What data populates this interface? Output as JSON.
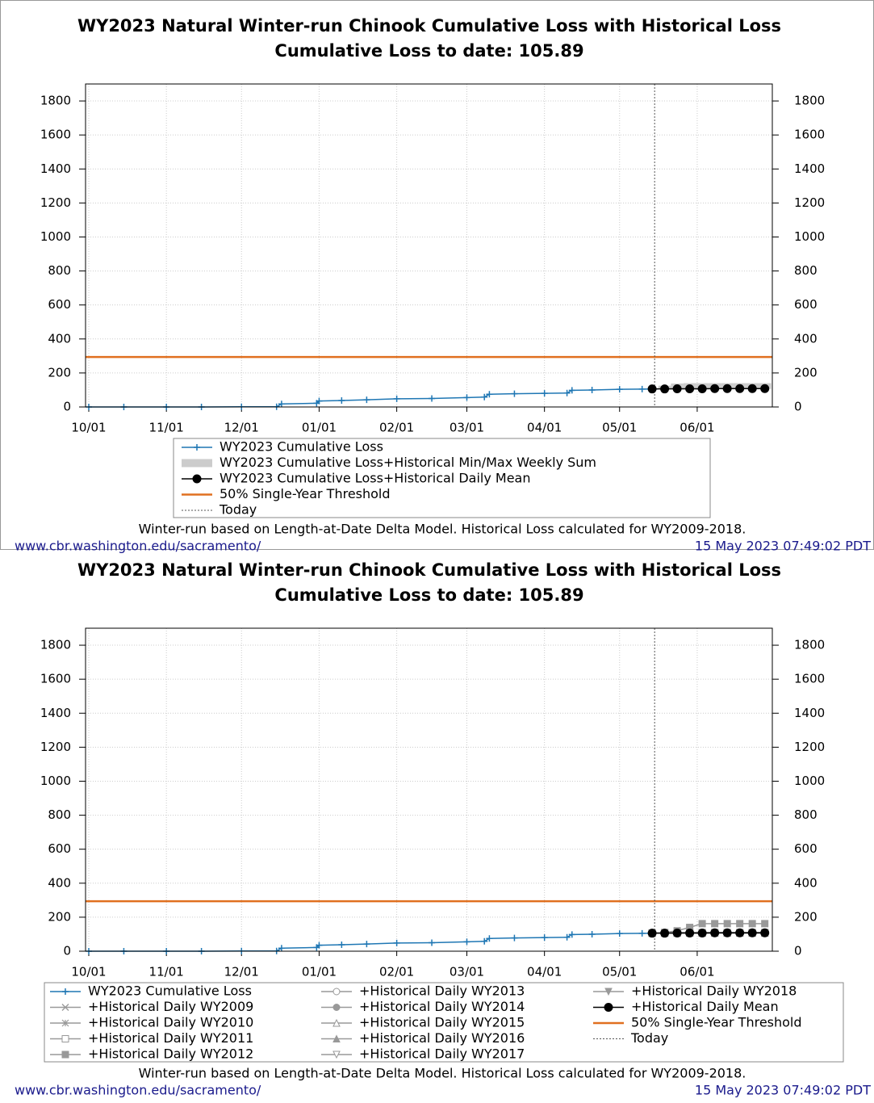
{
  "chart_data": [
    {
      "type": "line",
      "title": "WY2023 Natural Winter-run Chinook Cumulative Loss with Historical Loss",
      "subtitle": "Cumulative Loss to date: 105.89",
      "xlim": [
        "10/01",
        "07/01"
      ],
      "xticks": [
        "10/01",
        "11/01",
        "12/01",
        "01/01",
        "02/01",
        "03/01",
        "04/01",
        "05/01",
        "06/01"
      ],
      "ylim": [
        0,
        1900
      ],
      "yticks": [
        0,
        200,
        400,
        600,
        800,
        1000,
        1200,
        1400,
        1600,
        1800
      ],
      "grid": true,
      "legend": "bottom",
      "series": [
        {
          "name": "WY2023 Cumulative Loss",
          "kind": "line",
          "marker": "plus",
          "color": "#1f77b4",
          "x": [
            "10/01",
            "10/15",
            "11/01",
            "11/15",
            "12/01",
            "12/15",
            "12/17",
            "12/31",
            "01/01",
            "01/10",
            "01/20",
            "02/01",
            "02/15",
            "03/01",
            "03/08",
            "03/10",
            "03/20",
            "04/01",
            "04/10",
            "04/12",
            "04/20",
            "05/01",
            "05/10",
            "05/15"
          ],
          "values": [
            0,
            0,
            0,
            0,
            1,
            1,
            18,
            22,
            35,
            38,
            42,
            48,
            50,
            55,
            58,
            75,
            78,
            80,
            82,
            98,
            100,
            104,
            105,
            105.89
          ]
        },
        {
          "name": "WY2023 Cumulative Loss+Historical Min/Max Weekly Sum",
          "kind": "band",
          "color": "#cccccc",
          "x": [
            "05/14",
            "05/19",
            "05/24",
            "05/29",
            "06/03",
            "06/08",
            "06/13",
            "06/18",
            "06/23",
            "06/28"
          ],
          "low": [
            106,
            106,
            106,
            106,
            106,
            106,
            106,
            106,
            106,
            106
          ],
          "high": [
            108,
            125,
            138,
            140,
            140,
            140,
            140,
            140,
            140,
            140
          ]
        },
        {
          "name": "WY2023 Cumulative Loss+Historical Daily Mean",
          "kind": "line",
          "marker": "dot",
          "color": "#000000",
          "x": [
            "05/14",
            "05/19",
            "05/24",
            "05/29",
            "06/03",
            "06/08",
            "06/13",
            "06/18",
            "06/23",
            "06/28"
          ],
          "values": [
            106,
            106,
            107,
            107,
            107,
            108,
            108,
            108,
            108,
            108
          ]
        },
        {
          "name": "50% Single-Year Threshold",
          "kind": "hline",
          "color": "#e07020",
          "value": 294
        },
        {
          "name": "Today",
          "kind": "vline",
          "color": "#555555",
          "at": "05/15"
        }
      ],
      "footnote": "Winter-run based on Length-at-Date Delta Model. Historical Loss calculated for WY2009-2018.",
      "url": "www.cbr.washington.edu/sacramento/",
      "timestamp": "15 May 2023 07:49:02 PDT"
    },
    {
      "type": "line",
      "title": "WY2023 Natural Winter-run Chinook Cumulative Loss with Historical Loss",
      "subtitle": "Cumulative Loss to date: 105.89",
      "xlim": [
        "10/01",
        "07/01"
      ],
      "xticks": [
        "10/01",
        "11/01",
        "12/01",
        "01/01",
        "02/01",
        "03/01",
        "04/01",
        "05/01",
        "06/01"
      ],
      "ylim": [
        0,
        1900
      ],
      "yticks": [
        0,
        200,
        400,
        600,
        800,
        1000,
        1200,
        1400,
        1600,
        1800
      ],
      "grid": true,
      "legend": "bottom",
      "series": [
        {
          "name": "WY2023 Cumulative Loss",
          "kind": "line",
          "marker": "plus",
          "color": "#1f77b4",
          "x": [
            "10/01",
            "10/15",
            "11/01",
            "11/15",
            "12/01",
            "12/15",
            "12/17",
            "12/31",
            "01/01",
            "01/10",
            "01/20",
            "02/01",
            "02/15",
            "03/01",
            "03/08",
            "03/10",
            "03/20",
            "04/01",
            "04/10",
            "04/12",
            "04/20",
            "05/01",
            "05/10",
            "05/15"
          ],
          "values": [
            0,
            0,
            0,
            0,
            1,
            1,
            18,
            22,
            35,
            38,
            42,
            48,
            50,
            55,
            58,
            75,
            78,
            80,
            82,
            98,
            100,
            104,
            105,
            105.89
          ]
        },
        {
          "name": "+Historical Daily WY2009",
          "kind": "line",
          "marker": "x",
          "color": "#999999",
          "x": [
            "05/14",
            "05/19",
            "05/24",
            "05/29",
            "06/03",
            "06/08",
            "06/13",
            "06/18",
            "06/23",
            "06/28"
          ],
          "values": [
            106,
            106,
            107,
            107,
            107,
            107,
            107,
            107,
            107,
            107
          ]
        },
        {
          "name": "+Historical Daily WY2010",
          "kind": "line",
          "marker": "star",
          "color": "#999999",
          "x": [
            "05/14",
            "05/19",
            "05/24",
            "05/29",
            "06/03",
            "06/08",
            "06/13",
            "06/18",
            "06/23",
            "06/28"
          ],
          "values": [
            106,
            107,
            107,
            108,
            108,
            108,
            108,
            108,
            108,
            108
          ]
        },
        {
          "name": "+Historical Daily WY2011",
          "kind": "line",
          "marker": "square-open",
          "color": "#999999",
          "x": [
            "05/14",
            "05/19",
            "05/24",
            "05/29",
            "06/03",
            "06/08",
            "06/13",
            "06/18",
            "06/23",
            "06/28"
          ],
          "values": [
            106,
            106,
            106,
            106,
            106,
            106,
            106,
            106,
            106,
            106
          ]
        },
        {
          "name": "+Historical Daily WY2012",
          "kind": "line",
          "marker": "square",
          "color": "#999999",
          "x": [
            "05/14",
            "05/19",
            "05/24",
            "05/29",
            "06/03",
            "06/08",
            "06/13",
            "06/18",
            "06/23",
            "06/28"
          ],
          "values": [
            106,
            110,
            120,
            140,
            162,
            162,
            162,
            162,
            162,
            162
          ]
        },
        {
          "name": "+Historical Daily WY2013",
          "kind": "line",
          "marker": "circle-open",
          "color": "#999999",
          "x": [
            "05/14",
            "05/19",
            "05/24",
            "05/29",
            "06/03",
            "06/08",
            "06/13",
            "06/18",
            "06/23",
            "06/28"
          ],
          "values": [
            106,
            107,
            108,
            109,
            109,
            109,
            109,
            109,
            109,
            109
          ]
        },
        {
          "name": "+Historical Daily WY2014",
          "kind": "line",
          "marker": "circle",
          "color": "#999999",
          "x": [
            "05/14",
            "05/19",
            "05/24",
            "05/29",
            "06/03",
            "06/08",
            "06/13",
            "06/18",
            "06/23",
            "06/28"
          ],
          "values": [
            106,
            106,
            107,
            107,
            107,
            107,
            107,
            107,
            107,
            107
          ]
        },
        {
          "name": "+Historical Daily WY2015",
          "kind": "line",
          "marker": "triangle-open",
          "color": "#999999",
          "x": [
            "05/14",
            "05/19",
            "05/24",
            "05/29",
            "06/03",
            "06/08",
            "06/13",
            "06/18",
            "06/23",
            "06/28"
          ],
          "values": [
            106,
            106,
            106,
            107,
            107,
            107,
            107,
            107,
            107,
            107
          ]
        },
        {
          "name": "+Historical Daily WY2016",
          "kind": "line",
          "marker": "triangle",
          "color": "#999999",
          "x": [
            "05/14",
            "05/19",
            "05/24",
            "05/29",
            "06/03",
            "06/08",
            "06/13",
            "06/18",
            "06/23",
            "06/28"
          ],
          "values": [
            106,
            107,
            107,
            107,
            108,
            108,
            108,
            108,
            108,
            108
          ]
        },
        {
          "name": "+Historical Daily WY2017",
          "kind": "line",
          "marker": "tri-down-open",
          "color": "#999999",
          "x": [
            "05/14",
            "05/19",
            "05/24",
            "05/29",
            "06/03",
            "06/08",
            "06/13",
            "06/18",
            "06/23",
            "06/28"
          ],
          "values": [
            106,
            106,
            106,
            106,
            106,
            106,
            106,
            106,
            106,
            106
          ]
        },
        {
          "name": "+Historical Daily WY2018",
          "kind": "line",
          "marker": "tri-down",
          "color": "#999999",
          "x": [
            "05/14",
            "05/19",
            "05/24",
            "05/29",
            "06/03",
            "06/08",
            "06/13",
            "06/18",
            "06/23",
            "06/28"
          ],
          "values": [
            106,
            108,
            110,
            110,
            110,
            110,
            110,
            110,
            110,
            110
          ]
        },
        {
          "name": "+Historical Daily Mean",
          "kind": "line",
          "marker": "dot",
          "color": "#000000",
          "x": [
            "05/14",
            "05/19",
            "05/24",
            "05/29",
            "06/03",
            "06/08",
            "06/13",
            "06/18",
            "06/23",
            "06/28"
          ],
          "values": [
            106,
            106,
            107,
            107,
            107,
            108,
            108,
            108,
            108,
            108
          ]
        },
        {
          "name": "50% Single-Year Threshold",
          "kind": "hline",
          "color": "#e07020",
          "value": 294
        },
        {
          "name": "Today",
          "kind": "vline",
          "color": "#555555",
          "at": "05/15"
        }
      ],
      "footnote": "Winter-run based on Length-at-Date Delta Model. Historical Loss calculated for WY2009-2018.",
      "url": "www.cbr.washington.edu/sacramento/",
      "timestamp": "15 May 2023 07:49:02 PDT"
    }
  ]
}
